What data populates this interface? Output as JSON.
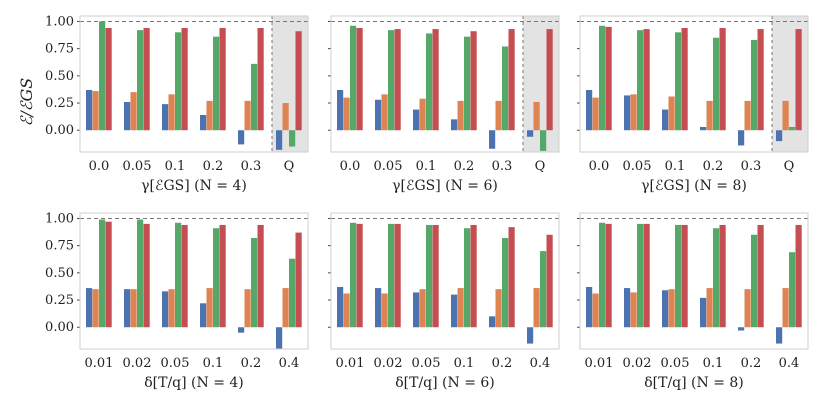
{
  "figure": {
    "ylabel": "ℰ/ℰGS",
    "series_colors": [
      "#4c72b0",
      "#dd8452",
      "#55a868",
      "#c44e52"
    ]
  },
  "chart_data": [
    {
      "type": "bar",
      "categories": [
        "0.0",
        "0.05",
        "0.1",
        "0.2",
        "0.3",
        "Q"
      ],
      "xlabel": "γ[ℰGS] (N = 4)",
      "ylim": [
        -0.2,
        1.05
      ],
      "yticks": [
        "0.00",
        "0.25",
        "0.50",
        "0.75",
        "1.00"
      ],
      "shaded_category": "Q",
      "reference_line": 1.0,
      "series": [
        {
          "values": [
            0.37,
            0.26,
            0.24,
            0.14,
            -0.13,
            -0.18
          ]
        },
        {
          "values": [
            0.36,
            0.35,
            0.33,
            0.27,
            0.27,
            0.25
          ]
        },
        {
          "values": [
            1.0,
            0.92,
            0.9,
            0.86,
            0.61,
            -0.15
          ]
        },
        {
          "values": [
            0.94,
            0.94,
            0.94,
            0.94,
            0.94,
            0.91
          ]
        }
      ]
    },
    {
      "type": "bar",
      "categories": [
        "0.0",
        "0.05",
        "0.1",
        "0.2",
        "0.3",
        "Q"
      ],
      "xlabel": "γ[ℰGS] (N = 6)",
      "ylim": [
        -0.2,
        1.05
      ],
      "yticks": [
        "0.00",
        "0.25",
        "0.50",
        "0.75",
        "1.00"
      ],
      "shaded_category": "Q",
      "reference_line": 1.0,
      "series": [
        {
          "values": [
            0.37,
            0.28,
            0.19,
            0.1,
            -0.17,
            -0.06
          ]
        },
        {
          "values": [
            0.3,
            0.33,
            0.29,
            0.27,
            0.27,
            0.26
          ]
        },
        {
          "values": [
            0.96,
            0.92,
            0.89,
            0.86,
            0.77,
            -0.19
          ]
        },
        {
          "values": [
            0.94,
            0.93,
            0.93,
            0.91,
            0.93,
            0.93
          ]
        }
      ]
    },
    {
      "type": "bar",
      "categories": [
        "0.0",
        "0.05",
        "0.1",
        "0.2",
        "0.3",
        "Q"
      ],
      "xlabel": "γ[ℰGS] (N = 8)",
      "ylim": [
        -0.2,
        1.05
      ],
      "yticks": [
        "0.00",
        "0.25",
        "0.50",
        "0.75",
        "1.00"
      ],
      "shaded_category": "Q",
      "reference_line": 1.0,
      "series": [
        {
          "values": [
            0.37,
            0.32,
            0.19,
            0.03,
            -0.14,
            -0.1
          ]
        },
        {
          "values": [
            0.3,
            0.33,
            0.31,
            0.27,
            0.27,
            0.27
          ]
        },
        {
          "values": [
            0.96,
            0.92,
            0.9,
            0.85,
            0.83,
            0.03
          ]
        },
        {
          "values": [
            0.95,
            0.93,
            0.94,
            0.94,
            0.93,
            0.93
          ]
        }
      ]
    },
    {
      "type": "bar",
      "categories": [
        "0.01",
        "0.02",
        "0.05",
        "0.1",
        "0.2",
        "0.4"
      ],
      "xlabel": "δ[T/q] (N = 4)",
      "ylim": [
        -0.2,
        1.05
      ],
      "yticks": [
        "0.00",
        "0.25",
        "0.50",
        "0.75",
        "1.00"
      ],
      "reference_line": 1.0,
      "series": [
        {
          "values": [
            0.36,
            0.35,
            0.33,
            0.22,
            -0.05,
            -0.2
          ]
        },
        {
          "values": [
            0.35,
            0.35,
            0.35,
            0.36,
            0.35,
            0.36
          ]
        },
        {
          "values": [
            0.99,
            0.99,
            0.96,
            0.91,
            0.82,
            0.63
          ]
        },
        {
          "values": [
            0.97,
            0.95,
            0.94,
            0.94,
            0.94,
            0.87
          ]
        }
      ]
    },
    {
      "type": "bar",
      "categories": [
        "0.01",
        "0.02",
        "0.05",
        "0.1",
        "0.2",
        "0.4"
      ],
      "xlabel": "δ[T/q] (N = 6)",
      "ylim": [
        -0.2,
        1.05
      ],
      "yticks": [
        "0.00",
        "0.25",
        "0.50",
        "0.75",
        "1.00"
      ],
      "reference_line": 1.0,
      "series": [
        {
          "values": [
            0.37,
            0.36,
            0.32,
            0.3,
            0.1,
            -0.15
          ]
        },
        {
          "values": [
            0.31,
            0.31,
            0.35,
            0.36,
            0.35,
            0.36
          ]
        },
        {
          "values": [
            0.96,
            0.95,
            0.94,
            0.91,
            0.82,
            0.7
          ]
        },
        {
          "values": [
            0.95,
            0.95,
            0.94,
            0.94,
            0.92,
            0.85
          ]
        }
      ]
    },
    {
      "type": "bar",
      "categories": [
        "0.01",
        "0.02",
        "0.05",
        "0.1",
        "0.2",
        "0.4"
      ],
      "xlabel": "δ[T/q] (N = 8)",
      "ylim": [
        -0.2,
        1.05
      ],
      "yticks": [
        "0.00",
        "0.25",
        "0.50",
        "0.75",
        "1.00"
      ],
      "reference_line": 1.0,
      "series": [
        {
          "values": [
            0.37,
            0.36,
            0.34,
            0.27,
            -0.03,
            -0.15
          ]
        },
        {
          "values": [
            0.31,
            0.32,
            0.35,
            0.36,
            0.35,
            0.36
          ]
        },
        {
          "values": [
            0.96,
            0.95,
            0.94,
            0.91,
            0.85,
            0.69
          ]
        },
        {
          "values": [
            0.95,
            0.95,
            0.94,
            0.94,
            0.94,
            0.94
          ]
        }
      ]
    }
  ]
}
